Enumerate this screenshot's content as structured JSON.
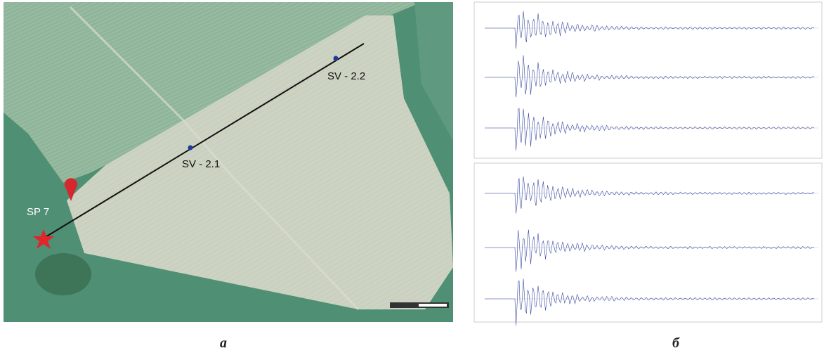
{
  "panels": [
    {
      "caption": "а",
      "labels": {
        "receiver_far": "SV - 2.2",
        "receiver_near": "SV - 2.1",
        "source": "SP 7"
      }
    },
    {
      "caption": "б"
    }
  ]
}
